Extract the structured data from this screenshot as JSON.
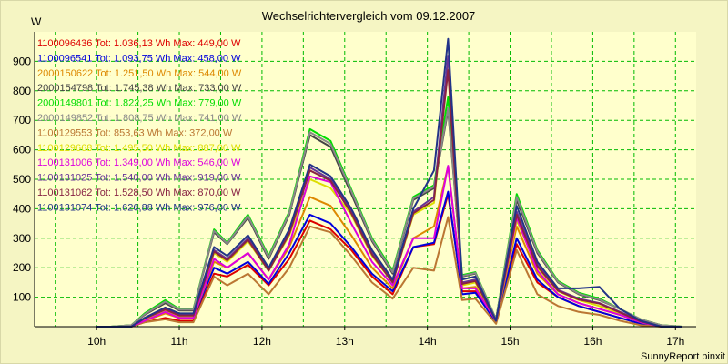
{
  "chart_data": {
    "type": "line",
    "title": "Wechselrichtervergleich vom 09.12.2007",
    "ylabel": "W",
    "xlabel": "",
    "x_ticks": [
      "10h",
      "11h",
      "12h",
      "13h",
      "14h",
      "15h",
      "16h",
      "17h"
    ],
    "y_ticks": [
      "100",
      "200",
      "300",
      "400",
      "500",
      "600",
      "700",
      "800",
      "900"
    ],
    "xlim": [
      9.25,
      17.25
    ],
    "ylim": [
      0,
      1000
    ],
    "grid": true,
    "grid_color": "#00bb00",
    "background_color": "#ffffcc",
    "credit": "SunnyReport pinxit",
    "x": [
      10.0,
      10.17,
      10.42,
      10.58,
      10.83,
      11.0,
      11.17,
      11.42,
      11.58,
      11.83,
      12.08,
      12.33,
      12.58,
      12.83,
      13.08,
      13.33,
      13.58,
      13.83,
      14.08,
      14.25,
      14.42,
      14.58,
      14.83,
      15.08,
      15.33,
      15.58,
      15.83,
      16.08,
      16.33,
      16.58,
      16.83,
      17.08
    ],
    "series": [
      {
        "name": "1100096436",
        "label": "1100096436 Tot: 1.036,13 Wh Max: 449,00 W",
        "color": "#dd0000",
        "values": [
          0,
          0,
          0,
          15,
          30,
          20,
          20,
          180,
          170,
          210,
          140,
          230,
          360,
          330,
          260,
          170,
          110,
          270,
          280,
          449,
          120,
          120,
          15,
          280,
          150,
          100,
          70,
          50,
          30,
          10,
          0,
          0
        ]
      },
      {
        "name": "1100096541",
        "label": "1100096541 Tot: 1.093,75 Wh Max: 458,00 W",
        "color": "#0000dd",
        "values": [
          0,
          0,
          0,
          20,
          50,
          30,
          30,
          200,
          180,
          220,
          145,
          250,
          380,
          350,
          270,
          180,
          120,
          270,
          285,
          458,
          110,
          115,
          15,
          300,
          160,
          100,
          70,
          50,
          30,
          10,
          0,
          0
        ]
      },
      {
        "name": "2000150622",
        "label": "2000150622 Tot: 1.251,50 Wh Max: 544,00 W",
        "color": "#dd8800",
        "values": [
          0,
          0,
          0,
          20,
          45,
          30,
          30,
          220,
          200,
          250,
          160,
          270,
          440,
          410,
          310,
          200,
          130,
          300,
          340,
          544,
          130,
          135,
          20,
          340,
          180,
          110,
          80,
          60,
          40,
          15,
          0,
          0
        ]
      },
      {
        "name": "2000154798",
        "label": "2000154798 Tot: 1.745,38 Wh Max: 733,00 W",
        "color": "#444444",
        "values": [
          0,
          0,
          5,
          40,
          80,
          55,
          55,
          320,
          280,
          370,
          230,
          380,
          650,
          610,
          450,
          290,
          180,
          430,
          470,
          733,
          170,
          180,
          25,
          430,
          250,
          150,
          110,
          90,
          60,
          25,
          5,
          0
        ]
      },
      {
        "name": "2000149801",
        "label": "2000149801 Tot: 1.822,25 Wh Max: 779,00 W",
        "color": "#00dd00",
        "values": [
          0,
          0,
          5,
          45,
          90,
          60,
          60,
          330,
          285,
          380,
          240,
          390,
          670,
          630,
          465,
          300,
          190,
          440,
          480,
          779,
          175,
          185,
          25,
          450,
          260,
          155,
          115,
          95,
          60,
          25,
          5,
          0
        ]
      },
      {
        "name": "2000149852",
        "label": "2000149852 Tot: 1.808,75 Wh Max: 741,00 W",
        "color": "#888888",
        "values": [
          0,
          0,
          5,
          42,
          85,
          58,
          58,
          325,
          282,
          375,
          235,
          385,
          660,
          620,
          460,
          295,
          185,
          435,
          475,
          741,
          172,
          182,
          25,
          440,
          255,
          152,
          112,
          92,
          60,
          25,
          5,
          0
        ]
      },
      {
        "name": "1100129553",
        "label": "1100129553 Tot: 853,63 Wh Max: 372,00 W",
        "color": "#bb7733",
        "values": [
          0,
          0,
          0,
          15,
          25,
          15,
          15,
          170,
          140,
          180,
          110,
          200,
          340,
          320,
          240,
          150,
          95,
          200,
          190,
          372,
          90,
          95,
          10,
          260,
          110,
          70,
          50,
          40,
          20,
          5,
          0,
          0
        ]
      },
      {
        "name": "1100129668",
        "label": "1100129668 Tot: 1.495,50 Wh Max: 887,00 W",
        "color": "#dddd00",
        "values": [
          0,
          0,
          0,
          25,
          55,
          35,
          35,
          250,
          220,
          290,
          190,
          310,
          500,
          470,
          380,
          240,
          150,
          380,
          420,
          887,
          140,
          150,
          20,
          360,
          200,
          120,
          90,
          70,
          45,
          20,
          0,
          0
        ]
      },
      {
        "name": "1100131006",
        "label": "1100131006 Tot: 1.349,00 Wh Max: 546,00 W",
        "color": "#dd00dd",
        "values": [
          0,
          0,
          0,
          20,
          50,
          30,
          30,
          230,
          200,
          250,
          160,
          280,
          510,
          490,
          350,
          220,
          140,
          300,
          300,
          546,
          130,
          130,
          20,
          370,
          190,
          110,
          80,
          60,
          40,
          15,
          0,
          0
        ]
      },
      {
        "name": "1100131025",
        "label": "1100131025 Tot: 1.540,00 Wh Max: 919,00 W",
        "color": "#663399",
        "values": [
          0,
          0,
          0,
          30,
          60,
          40,
          40,
          260,
          230,
          300,
          195,
          320,
          540,
          500,
          390,
          250,
          155,
          390,
          440,
          919,
          150,
          160,
          20,
          390,
          210,
          125,
          95,
          80,
          50,
          20,
          0,
          0
        ]
      },
      {
        "name": "1100131062",
        "label": "1100131062 Tot: 1.528,50 Wh Max: 870,00 W",
        "color": "#882244",
        "values": [
          0,
          0,
          0,
          28,
          58,
          38,
          38,
          255,
          225,
          295,
          190,
          315,
          530,
          495,
          385,
          245,
          150,
          385,
          430,
          870,
          145,
          155,
          20,
          380,
          205,
          122,
          92,
          78,
          48,
          18,
          0,
          0
        ]
      },
      {
        "name": "1100131074",
        "label": "1100131074 Tot: 1.626,88 Wh Max: 976,00 W",
        "color": "#223388",
        "values": [
          0,
          0,
          0,
          30,
          65,
          45,
          45,
          270,
          240,
          310,
          200,
          330,
          550,
          510,
          400,
          260,
          160,
          400,
          530,
          976,
          160,
          170,
          20,
          410,
          220,
          130,
          130,
          135,
          60,
          20,
          0,
          0
        ]
      }
    ]
  }
}
